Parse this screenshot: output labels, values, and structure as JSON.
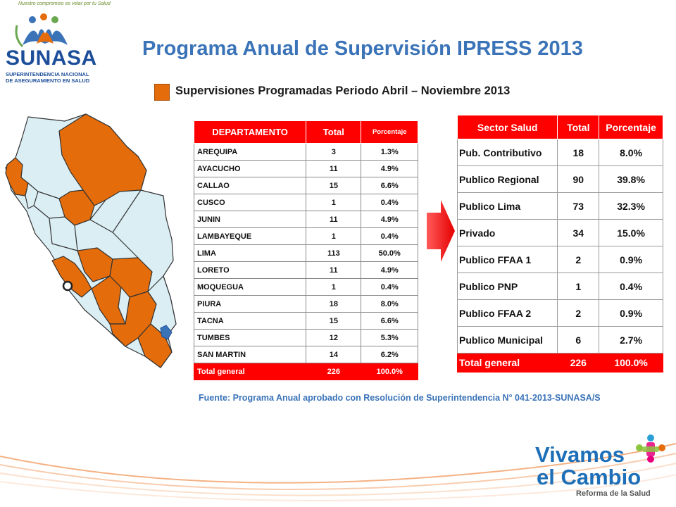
{
  "logo": {
    "name": "SUNASA",
    "tagline": "Nuestro compromiso es velar por tu Salud",
    "subtitle_1": "SUPERINTENDENCIA NACIONAL",
    "subtitle_2": "DE ASEGURAMIENTO EN SALUD"
  },
  "title": "Programa Anual de Supervisión IPRESS 2013",
  "legend": {
    "label": "Supervisiones Programadas Periodo Abril – Noviembre 2013",
    "color": "#e46c0a"
  },
  "dept_table": {
    "headers": [
      "DEPARTAMENTO",
      "Total",
      "Porcentaje"
    ],
    "rows": [
      [
        "AREQUIPA",
        "3",
        "1.3%"
      ],
      [
        "AYACUCHO",
        "11",
        "4.9%"
      ],
      [
        "CALLAO",
        "15",
        "6.6%"
      ],
      [
        "CUSCO",
        "1",
        "0.4%"
      ],
      [
        "JUNIN",
        "11",
        "4.9%"
      ],
      [
        "LAMBAYEQUE",
        "1",
        "0.4%"
      ],
      [
        "LIMA",
        "113",
        "50.0%"
      ],
      [
        "LORETO",
        "11",
        "4.9%"
      ],
      [
        "MOQUEGUA",
        "1",
        "0.4%"
      ],
      [
        "PIURA",
        "18",
        "8.0%"
      ],
      [
        "TACNA",
        "15",
        "6.6%"
      ],
      [
        "TUMBES",
        "12",
        "5.3%"
      ],
      [
        "SAN MARTIN",
        "14",
        "6.2%"
      ]
    ],
    "total": [
      "Total general",
      "226",
      "100.0%"
    ]
  },
  "sector_table": {
    "headers": [
      "Sector Salud",
      "Total",
      "Porcentaje"
    ],
    "rows": [
      [
        "Pub. Contributivo",
        "18",
        "8.0%"
      ],
      [
        "Publico Regional",
        "90",
        "39.8%"
      ],
      [
        "Publico Lima",
        "73",
        "32.3%"
      ],
      [
        "Privado",
        "34",
        "15.0%"
      ],
      [
        "Publico FFAA 1",
        "2",
        "0.9%"
      ],
      [
        "Publico PNP",
        "1",
        "0.4%"
      ],
      [
        "Publico FFAA 2",
        "2",
        "0.9%"
      ],
      [
        "Publico Municipal",
        "6",
        "2.7%"
      ]
    ],
    "total": [
      "Total general",
      "226",
      "100.0%"
    ]
  },
  "source": "Fuente: Programa Anual aprobado con Resolución de Superintendencia N° 041-2013-SUNASA/S",
  "brand": {
    "line1": "Vivamos",
    "line2": "el Cambio",
    "tagline": "Reforma de la Salud"
  },
  "colors": {
    "highlight": "#e46c0a",
    "map_base": "#dbeef4",
    "header_red": "#ff0000",
    "title_blue": "#3a73b8"
  }
}
